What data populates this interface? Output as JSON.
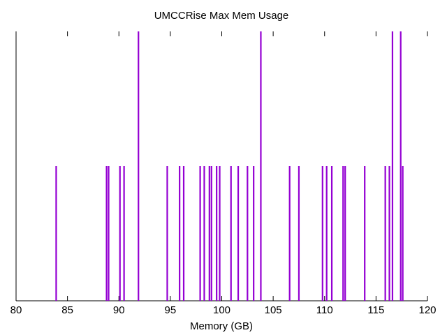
{
  "chart_data": {
    "type": "bar",
    "title": "UMCCRise Max Mem Usage",
    "xlabel": "Memory (GB)",
    "ylabel": "",
    "xlim": [
      80,
      120
    ],
    "ylim": [
      0,
      2
    ],
    "xticks": [
      80,
      85,
      90,
      95,
      100,
      105,
      110,
      115,
      120
    ],
    "grid": false,
    "legend": "none",
    "bar_color": "#9400d3",
    "series": [
      {
        "x": [
          83.9,
          88.8,
          89.0,
          90.1,
          90.5,
          91.9,
          94.7,
          95.9,
          96.3,
          97.9,
          98.3,
          98.8,
          99.0,
          99.5,
          99.8,
          100.9,
          101.6,
          102.5,
          103.1,
          103.8,
          106.6,
          107.5,
          109.8,
          110.2,
          110.7,
          111.8,
          112.0,
          113.9,
          115.9,
          116.3,
          116.6,
          117.4,
          117.6
        ],
        "values": [
          1,
          1,
          1,
          1,
          1,
          2,
          1,
          1,
          1,
          1,
          1,
          1,
          1,
          1,
          1,
          1,
          1,
          1,
          1,
          2,
          1,
          1,
          1,
          1,
          1,
          1,
          1,
          1,
          1,
          1,
          2,
          2,
          1
        ]
      }
    ]
  }
}
